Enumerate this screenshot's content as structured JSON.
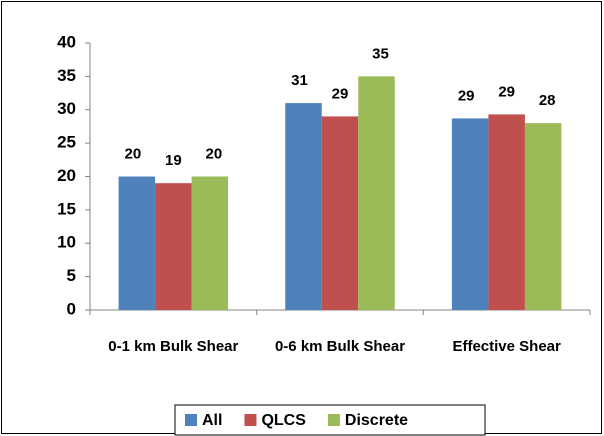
{
  "chart_data": {
    "type": "bar",
    "categories": [
      "0-1 km Bulk Shear",
      "0-6 km Bulk Shear",
      "Effective Shear"
    ],
    "series": [
      {
        "name": "All",
        "color": "#4f81bd",
        "values": [
          20,
          31,
          28.7
        ],
        "value_labels": [
          "20",
          "31",
          "29"
        ]
      },
      {
        "name": "QLCS",
        "color": "#c0504d",
        "values": [
          19,
          29,
          29.3
        ],
        "value_labels": [
          "19",
          "29",
          "29"
        ]
      },
      {
        "name": "Discrete",
        "color": "#9bbb59",
        "values": [
          20,
          35,
          28
        ],
        "value_labels": [
          "20",
          "35",
          "28"
        ]
      }
    ],
    "ylim": [
      0,
      40
    ],
    "yticks": [
      0,
      5,
      10,
      15,
      20,
      25,
      30,
      35,
      40
    ],
    "grid": false,
    "legend": "bottom"
  }
}
